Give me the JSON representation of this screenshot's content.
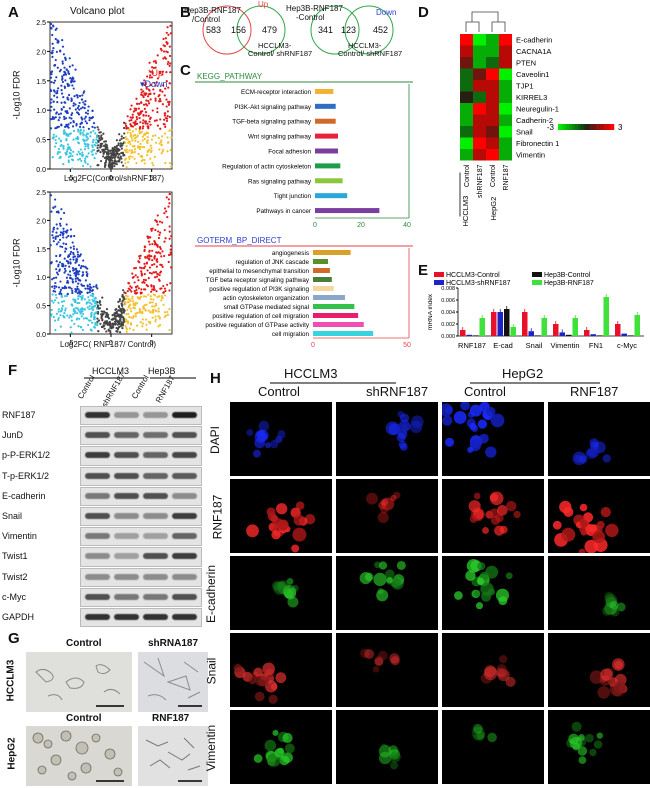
{
  "panel_labels": {
    "A": "A",
    "B": "B",
    "C": "C",
    "D": "D",
    "E": "E",
    "F": "F",
    "G": "G",
    "H": "H"
  },
  "panelA": {
    "title": "Volcano plot",
    "ylabel1": "-Log10 FDR",
    "xlabel1": "Log2FC(Control/shRNF187)",
    "ylabel2": "-Log10 FDR",
    "xlabel2": "Log2FC( RNF187/ Control)",
    "legend_up": "Up",
    "legend_down": "Down",
    "yticks": [
      "2.5",
      "2.0",
      "1.5",
      "1.0",
      "0.5",
      "0.0"
    ],
    "xticks1": [
      "-5",
      "0",
      "5"
    ],
    "xticks2": [
      "-5",
      "0",
      "5"
    ],
    "colors": {
      "up": "#e31a1c",
      "down": "#1f3fbf",
      "mid": "#f2c12e",
      "cyan": "#3ec6e0",
      "ns": "#444444"
    }
  },
  "panelB": {
    "up_label_left": "Hep3B-RNF187",
    "up_label_left2": "/Control",
    "up_title": "Up",
    "down_label": "Hep3B-RNF187",
    "down_label2": "-Control",
    "down_title": "Down",
    "v1": [
      "583",
      "156",
      "479"
    ],
    "v2": [
      "341",
      "123",
      "452"
    ],
    "bot1": "HCCLM3-",
    "bot1b": "Control/ shRNF187",
    "bot2": "HCCLM3-",
    "bot2b": "Control/ shRNF187"
  },
  "chart_data": [
    {
      "type": "bar",
      "title": "KEGG_PATHWAY",
      "categories": [
        "ECM-receptor interaction",
        "PI3K-Akt signaling pathway",
        "TGF-beta signaling pathway",
        "Wnt signaling pathway",
        "Focal adhesion",
        "Regulation of actin cytoskeleton",
        "Ras signaling pathway",
        "Tight junction",
        "Pathways in cancer"
      ],
      "values": [
        8,
        9,
        9,
        10,
        10,
        11,
        12,
        14,
        28
      ],
      "colors": [
        "#f2b233",
        "#2f6fbf",
        "#d1692a",
        "#e8223a",
        "#7a3f9c",
        "#1e9e4a",
        "#8cc63f",
        "#2aa7d9",
        "#7b3fa0"
      ],
      "xticks": [
        "0",
        "20",
        "40"
      ],
      "xlim": [
        0,
        40
      ]
    },
    {
      "type": "bar",
      "title": "GOTERM_BP_DIRECT",
      "categories": [
        "angiogenesis",
        "regulation of JNK cascade",
        "epithelial to mesenchymal transition",
        "TGF beta receptor signaling pathway",
        "positive regulation of PI3K signaling",
        "actin cytoskeleton organization",
        "small GTPase mediated signal",
        "positive regulation of cell migration",
        "positive regulation of GTPase activity",
        "cell migration"
      ],
      "values": [
        20,
        8,
        9,
        10,
        11,
        17,
        22,
        24,
        27,
        32
      ],
      "colors": [
        "#d9a02a",
        "#5a8f2e",
        "#d1692a",
        "#4a7d3a",
        "#f5d79e",
        "#8aa6c8",
        "#32c24a",
        "#ea1d6b",
        "#ee4fb3",
        "#37d4e0"
      ],
      "xticks": [
        "0",
        "50"
      ],
      "xlim": [
        0,
        50
      ]
    },
    {
      "type": "bar",
      "title": "",
      "ylabel": "mRNA index",
      "categories": [
        "RNF187",
        "E-cad",
        "Snail",
        "Vimentin",
        "FN1",
        "c-Myc"
      ],
      "series": [
        {
          "name": "HCCLM3-Control",
          "values": [
            0.001,
            0.004,
            0.004,
            0.002,
            0.001,
            0.002
          ]
        },
        {
          "name": "HCCLM3-shRNF187",
          "values": [
            0.0002,
            0.004,
            0.0008,
            0.0006,
            0.0003,
            0.0004
          ]
        },
        {
          "name": "Hep3B-Control",
          "values": [
            0.0001,
            0.0045,
            0.0001,
            0.0002,
            0.0001,
            0.0001
          ]
        },
        {
          "name": "Hep3B-RNF187",
          "values": [
            0.003,
            0.0015,
            0.003,
            0.003,
            0.0065,
            0.0035
          ]
        }
      ],
      "series_colors": [
        "#e8102a",
        "#1c24c8",
        "#111111",
        "#3ee23a"
      ],
      "yticks": [
        "0.000",
        "0.002",
        "0.004",
        "0.006",
        "0.008"
      ],
      "ylim": [
        0,
        0.008
      ]
    }
  ],
  "panelD": {
    "genes": [
      "E-cadherin",
      "CACNA1A",
      "PTEN",
      "Caveolin1",
      "TJP1",
      "KIRREL3",
      "Neuregulin-1",
      "Cadherin-2",
      "Snail",
      "Fibronectin 1",
      "Vimentin"
    ],
    "cols": [
      "Control",
      "shRNF187",
      "Control",
      "RNF187"
    ],
    "groups": [
      "HCCLM3",
      "HepG2"
    ],
    "scale_min": "-3",
    "scale_max": "3",
    "matrix": [
      [
        3,
        -3,
        -2,
        3
      ],
      [
        2,
        -2,
        -2,
        2
      ],
      [
        1,
        -2,
        -1,
        2
      ],
      [
        -1,
        1,
        3,
        -3
      ],
      [
        -1,
        2,
        2,
        -2
      ],
      [
        0,
        -1,
        2,
        -2
      ],
      [
        -2,
        3,
        2,
        -3
      ],
      [
        -2,
        2,
        2,
        -2
      ],
      [
        -1,
        2,
        1,
        -3
      ],
      [
        -3,
        3,
        2,
        -2
      ],
      [
        -2,
        2,
        3,
        -2
      ]
    ]
  },
  "panelF": {
    "groups": [
      "HCCLM3",
      "Hep3B"
    ],
    "lanes": [
      "Control",
      "shRNF187",
      "Control",
      "RNF187"
    ],
    "bands": [
      "RNF187",
      "JunD",
      "p-P-ERK1/2",
      "T-p-ERK1/2",
      "E-cadherin",
      "Snail",
      "Vimentin",
      "Twist1",
      "Twist2",
      "c-Myc",
      "GAPDH"
    ]
  },
  "panelG": {
    "cols1": [
      "Control",
      "shRNA187"
    ],
    "cols2": [
      "Control",
      "RNF187"
    ],
    "rows": [
      "HCCLM3",
      "HepG2"
    ]
  },
  "panelH": {
    "groups": [
      "HCCLM3",
      "HepG2"
    ],
    "cols": [
      "Control",
      "shRNF187",
      "Control",
      "RNF187"
    ],
    "rows": [
      "DAPI",
      "RNF187",
      "E-cadherin",
      "Snail",
      "Vimentin"
    ]
  }
}
